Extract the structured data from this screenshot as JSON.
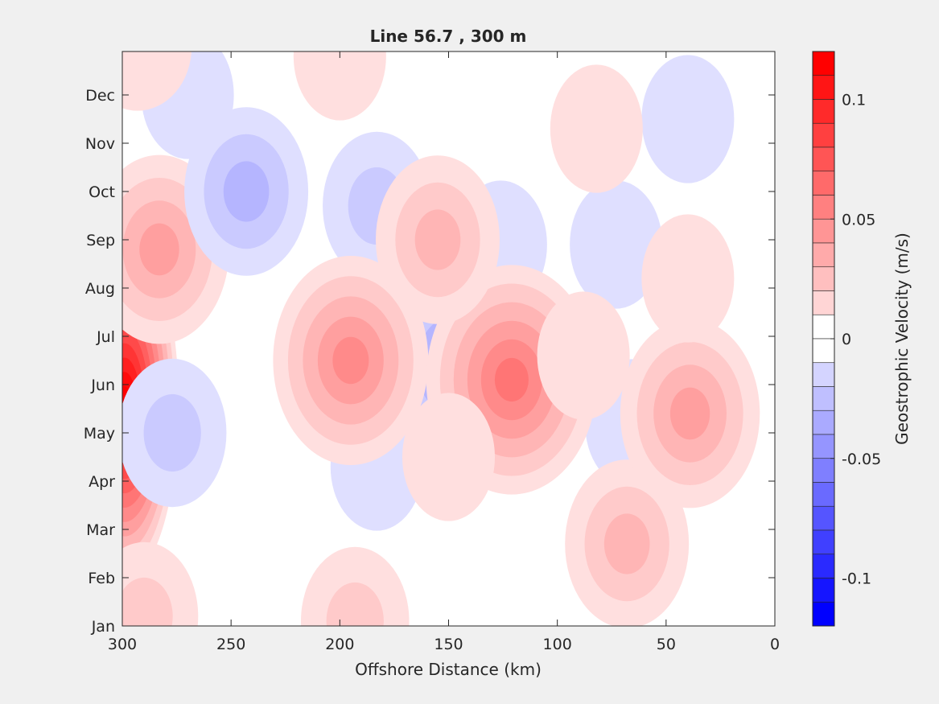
{
  "chart_data": {
    "type": "contour",
    "title": "Line 56.7 , 300 m",
    "xlabel": "Offshore Distance (km)",
    "ylabel": "",
    "xlim": [
      300,
      0
    ],
    "x_reversed": true,
    "xticks": [
      300,
      250,
      200,
      150,
      100,
      50,
      0
    ],
    "y_categories": [
      "Jan",
      "Feb",
      "Mar",
      "Apr",
      "May",
      "Jun",
      "Jul",
      "Aug",
      "Sep",
      "Oct",
      "Nov",
      "Dec"
    ],
    "colorbar": {
      "label": "Geostrophic Velocity (m/s)",
      "range": [
        -0.12,
        0.12
      ],
      "levels": 24,
      "ticks": [
        {
          "value": 0.1,
          "label": "0.1"
        },
        {
          "value": 0.05,
          "label": "0.05"
        },
        {
          "value": 0,
          "label": "0"
        },
        {
          "value": -0.05,
          "label": "-0.05"
        },
        {
          "value": -0.1,
          "label": "-0.1"
        }
      ],
      "colormap": "blue-white-red",
      "positive_color": "#ff0000",
      "negative_color": "#0000ff"
    },
    "features": [
      {
        "sign": "positive",
        "x_km": 299,
        "month": 5.6,
        "peak_m_s": 0.12
      },
      {
        "sign": "positive",
        "x_km": 283,
        "month": 8.8,
        "peak_m_s": 0.04
      },
      {
        "sign": "positive",
        "x_km": 290,
        "month": 1.2,
        "peak_m_s": 0.02
      },
      {
        "sign": "negative",
        "x_km": 243,
        "month": 10.0,
        "peak_m_s": -0.03
      },
      {
        "sign": "negative",
        "x_km": 277,
        "month": 5.0,
        "peak_m_s": -0.02
      },
      {
        "sign": "negative",
        "x_km": 270,
        "month": 12.0,
        "peak_m_s": -0.01
      },
      {
        "sign": "negative",
        "x_km": 183,
        "month": 9.7,
        "peak_m_s": -0.02
      },
      {
        "sign": "negative",
        "x_km": 148,
        "month": 6.4,
        "peak_m_s": -0.04
      },
      {
        "sign": "negative",
        "x_km": 183,
        "month": 4.3,
        "peak_m_s": -0.01
      },
      {
        "sign": "negative",
        "x_km": 73,
        "month": 8.9,
        "peak_m_s": -0.01
      },
      {
        "sign": "negative",
        "x_km": 40,
        "month": 11.5,
        "peak_m_s": -0.01
      },
      {
        "sign": "negative",
        "x_km": 66,
        "month": 5.2,
        "peak_m_s": -0.01
      },
      {
        "sign": "negative",
        "x_km": 126,
        "month": 8.9,
        "peak_m_s": -0.01
      },
      {
        "sign": "positive",
        "x_km": 195,
        "month": 6.5,
        "peak_m_s": 0.05
      },
      {
        "sign": "positive",
        "x_km": 121,
        "month": 6.1,
        "peak_m_s": 0.06
      },
      {
        "sign": "positive",
        "x_km": 193,
        "month": 1.1,
        "peak_m_s": 0.02
      },
      {
        "sign": "positive",
        "x_km": 155,
        "month": 9.0,
        "peak_m_s": 0.03
      },
      {
        "sign": "positive",
        "x_km": 150,
        "month": 4.5,
        "peak_m_s": 0.01
      },
      {
        "sign": "positive",
        "x_km": 88,
        "month": 6.6,
        "peak_m_s": 0.01
      },
      {
        "sign": "positive",
        "x_km": 82,
        "month": 11.3,
        "peak_m_s": 0.01
      },
      {
        "sign": "positive",
        "x_km": 68,
        "month": 2.7,
        "peak_m_s": 0.03
      },
      {
        "sign": "positive",
        "x_km": 39,
        "month": 5.4,
        "peak_m_s": 0.04
      },
      {
        "sign": "positive",
        "x_km": 40,
        "month": 8.2,
        "peak_m_s": 0.01
      },
      {
        "sign": "positive",
        "x_km": 200,
        "month": 12.8,
        "peak_m_s": 0.01
      },
      {
        "sign": "positive",
        "x_km": 293,
        "month": 13.0,
        "peak_m_s": 0.01
      }
    ]
  }
}
